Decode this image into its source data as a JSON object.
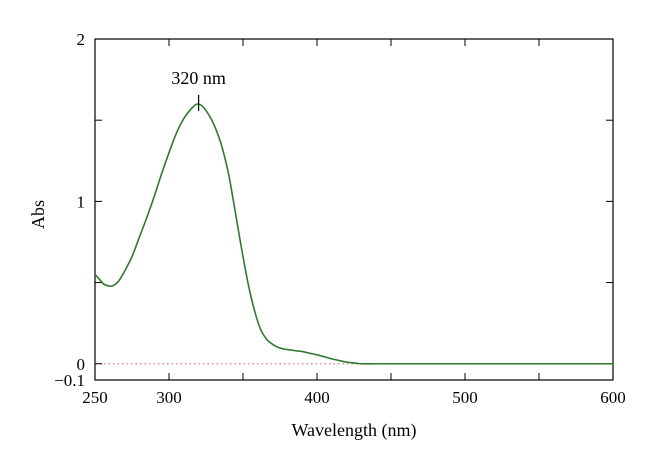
{
  "chart_data": {
    "type": "line",
    "xlabel": "Wavelength (nm)",
    "ylabel": "Abs",
    "xlim": [
      250,
      600
    ],
    "ylim": [
      -0.1,
      2
    ],
    "x_ticks": [
      250,
      300,
      400,
      500,
      600
    ],
    "x_minor_ticks": [
      350,
      450,
      550
    ],
    "y_ticks": [
      -0.1,
      0,
      1,
      2
    ],
    "y_tick_labels": [
      "−0.1",
      "0",
      "1",
      "2"
    ],
    "y_minor_ticks": [
      0.5,
      1.5
    ],
    "grid": false,
    "baseline": {
      "y": 0,
      "style": "dotted",
      "color": "#e07a8c"
    },
    "annotation": {
      "text": "320 nm",
      "x": 320,
      "y": 1.6
    },
    "series": [
      {
        "color": "#2e7a2e",
        "x": [
          250,
          253,
          256,
          259,
          262,
          266,
          270,
          275,
          280,
          285,
          290,
          295,
          300,
          305,
          310,
          315,
          318,
          320,
          322,
          325,
          330,
          335,
          340,
          343,
          346,
          350,
          354,
          358,
          362,
          366,
          370,
          374,
          378,
          382,
          386,
          390,
          395,
          400,
          405,
          410,
          415,
          420,
          425,
          430,
          440,
          450,
          475,
          500,
          525,
          550,
          575,
          600
        ],
        "y": [
          0.55,
          0.52,
          0.49,
          0.48,
          0.48,
          0.51,
          0.57,
          0.66,
          0.78,
          0.9,
          1.03,
          1.17,
          1.3,
          1.42,
          1.51,
          1.57,
          1.595,
          1.6,
          1.59,
          1.56,
          1.48,
          1.36,
          1.18,
          1.03,
          0.87,
          0.66,
          0.47,
          0.32,
          0.21,
          0.15,
          0.12,
          0.1,
          0.09,
          0.085,
          0.08,
          0.075,
          0.065,
          0.055,
          0.043,
          0.03,
          0.02,
          0.01,
          0.005,
          0.0,
          0.0,
          0.0,
          0.0,
          0.0,
          0.0,
          0.0,
          0.0,
          0.0
        ]
      }
    ]
  }
}
